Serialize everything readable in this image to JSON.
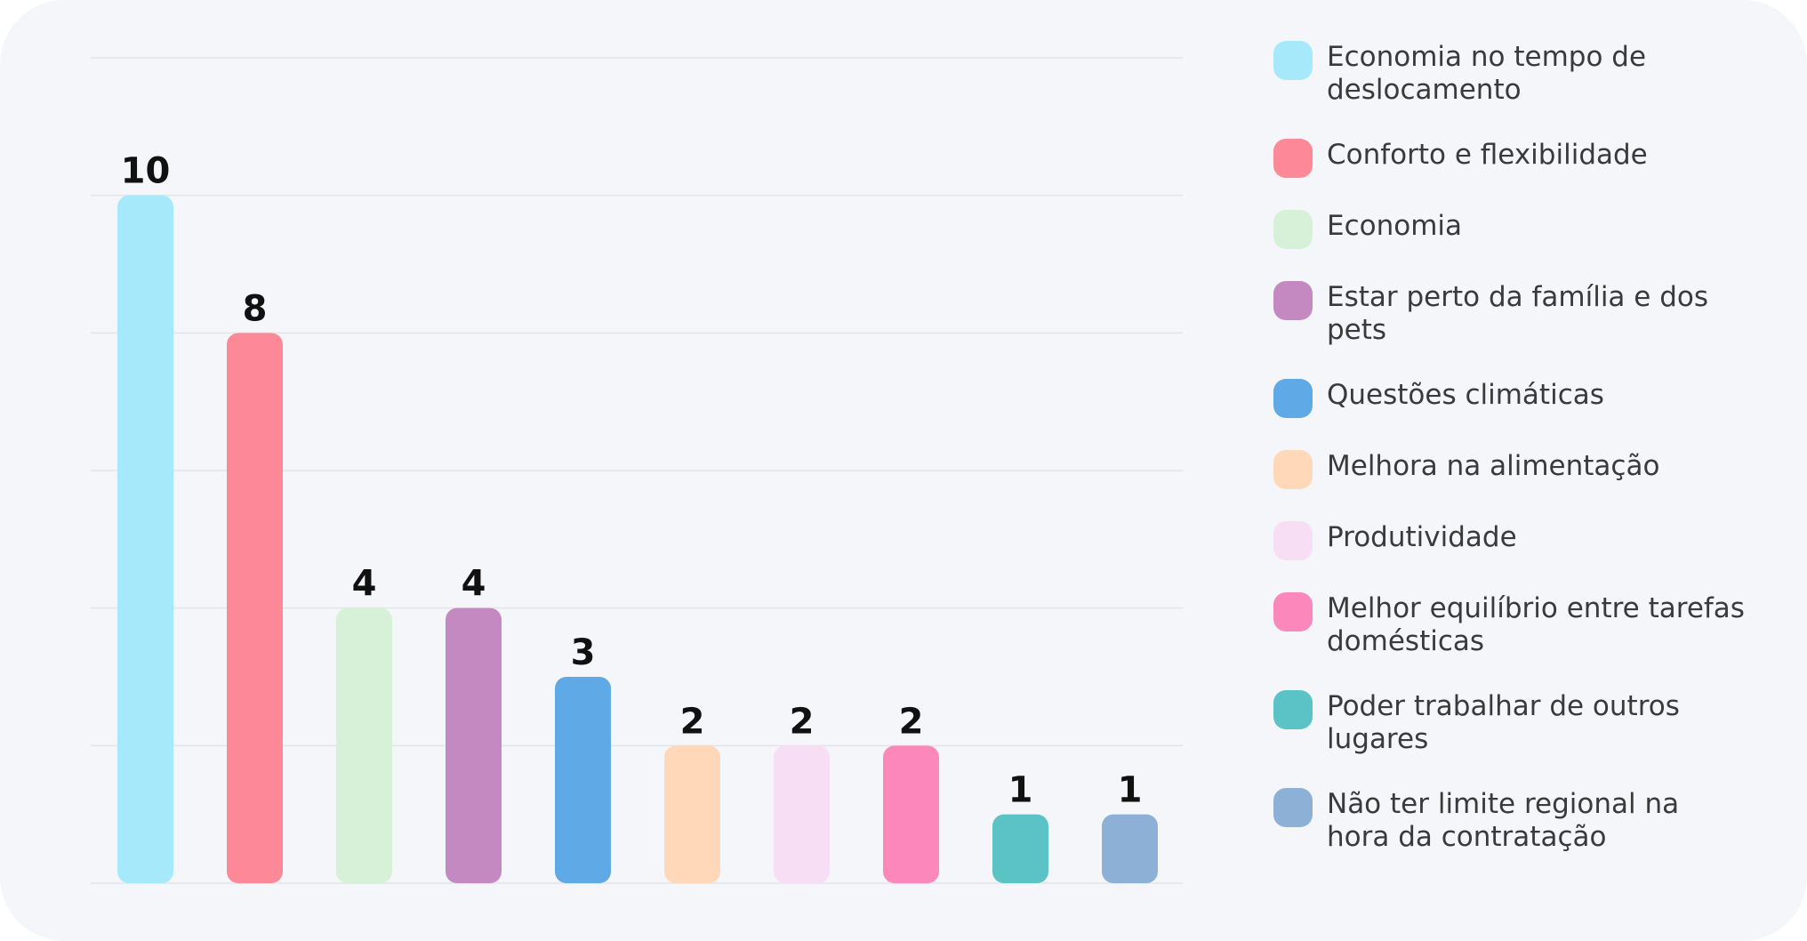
{
  "chart_data": {
    "type": "bar",
    "title": "",
    "xlabel": "",
    "ylabel": "",
    "ylim": [
      0,
      12
    ],
    "grid": true,
    "legend_position": "right",
    "categories": [
      "Economia no tempo de deslocamento",
      "Conforto e flexibilidade",
      "Economia",
      "Estar perto da família e dos pets",
      "Questões climáticas",
      "Melhora na alimentação",
      "Produtividade",
      "Melhor equilíbrio entre tarefas domésticas",
      "Poder trabalhar de outros lugares",
      "Não ter limite regional na hora da contratação"
    ],
    "values": [
      10,
      8,
      4,
      4,
      3,
      2,
      2,
      2,
      1,
      1
    ],
    "colors": [
      "#a6e9fb",
      "#fd8897",
      "#d6f1d8",
      "#c589c2",
      "#5ea9e6",
      "#fed8b8",
      "#f7def4",
      "#fc87ba",
      "#5bc3c5",
      "#8cb0d6"
    ]
  }
}
